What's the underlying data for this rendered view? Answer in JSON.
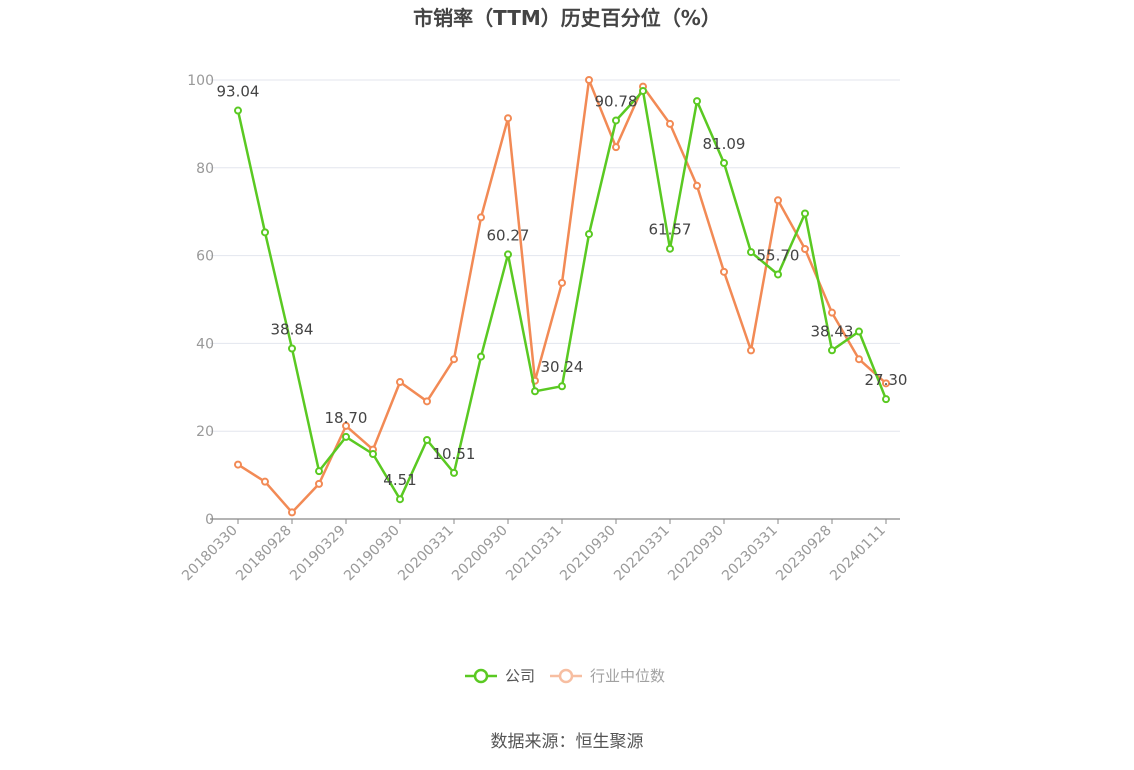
{
  "chart_data": {
    "type": "line",
    "title": "市销率（TTM）历史百分位（%）",
    "source": "数据来源：恒生聚源",
    "ylim": [
      0,
      100
    ],
    "yticks": [
      0,
      20,
      40,
      60,
      80,
      100
    ],
    "grid": true,
    "legend_position": "bottom",
    "x": [
      "20180330",
      "20180629",
      "20180928",
      "20181228",
      "20190329",
      "20190628",
      "20190930",
      "20191231",
      "20200331",
      "20200630",
      "20200930",
      "20201231",
      "20210331",
      "20210630",
      "20210930",
      "20211231",
      "20220331",
      "20220630",
      "20220930",
      "20221230",
      "20230331",
      "20230630",
      "20230928",
      "20231229",
      "20240111"
    ],
    "xticks": [
      "20180330",
      "20180928",
      "20190329",
      "20190930",
      "20200331",
      "20200930",
      "20210331",
      "20210930",
      "20220331",
      "20220930",
      "20230331",
      "20230928",
      "20240111"
    ],
    "series": [
      {
        "name": "公司",
        "color": "#5ac922",
        "values": [
          93.04,
          65.3,
          38.84,
          10.9,
          18.7,
          14.8,
          4.51,
          18.0,
          10.51,
          37.0,
          60.27,
          29.1,
          30.24,
          64.9,
          90.78,
          97.5,
          61.57,
          95.2,
          81.09,
          60.8,
          55.7,
          69.6,
          38.43,
          42.7,
          27.3
        ],
        "labels": {
          "0": "93.04",
          "2": "38.84",
          "4": "18.70",
          "6": "4.51",
          "8": "10.51",
          "10": "60.27",
          "12": "30.24",
          "14": "90.78",
          "16": "61.57",
          "18": "81.09",
          "20": "55.70",
          "22": "38.43",
          "24": "27.30"
        }
      },
      {
        "name": "行业中位数",
        "color": "#f28a55",
        "values": [
          12.4,
          8.5,
          1.5,
          8.0,
          21.2,
          15.8,
          31.2,
          26.8,
          36.4,
          68.7,
          91.3,
          31.5,
          53.8,
          100.0,
          84.7,
          98.5,
          90.0,
          75.9,
          56.3,
          38.4,
          72.6,
          61.5,
          47.0,
          36.4,
          30.9
        ],
        "labels": {}
      }
    ]
  }
}
